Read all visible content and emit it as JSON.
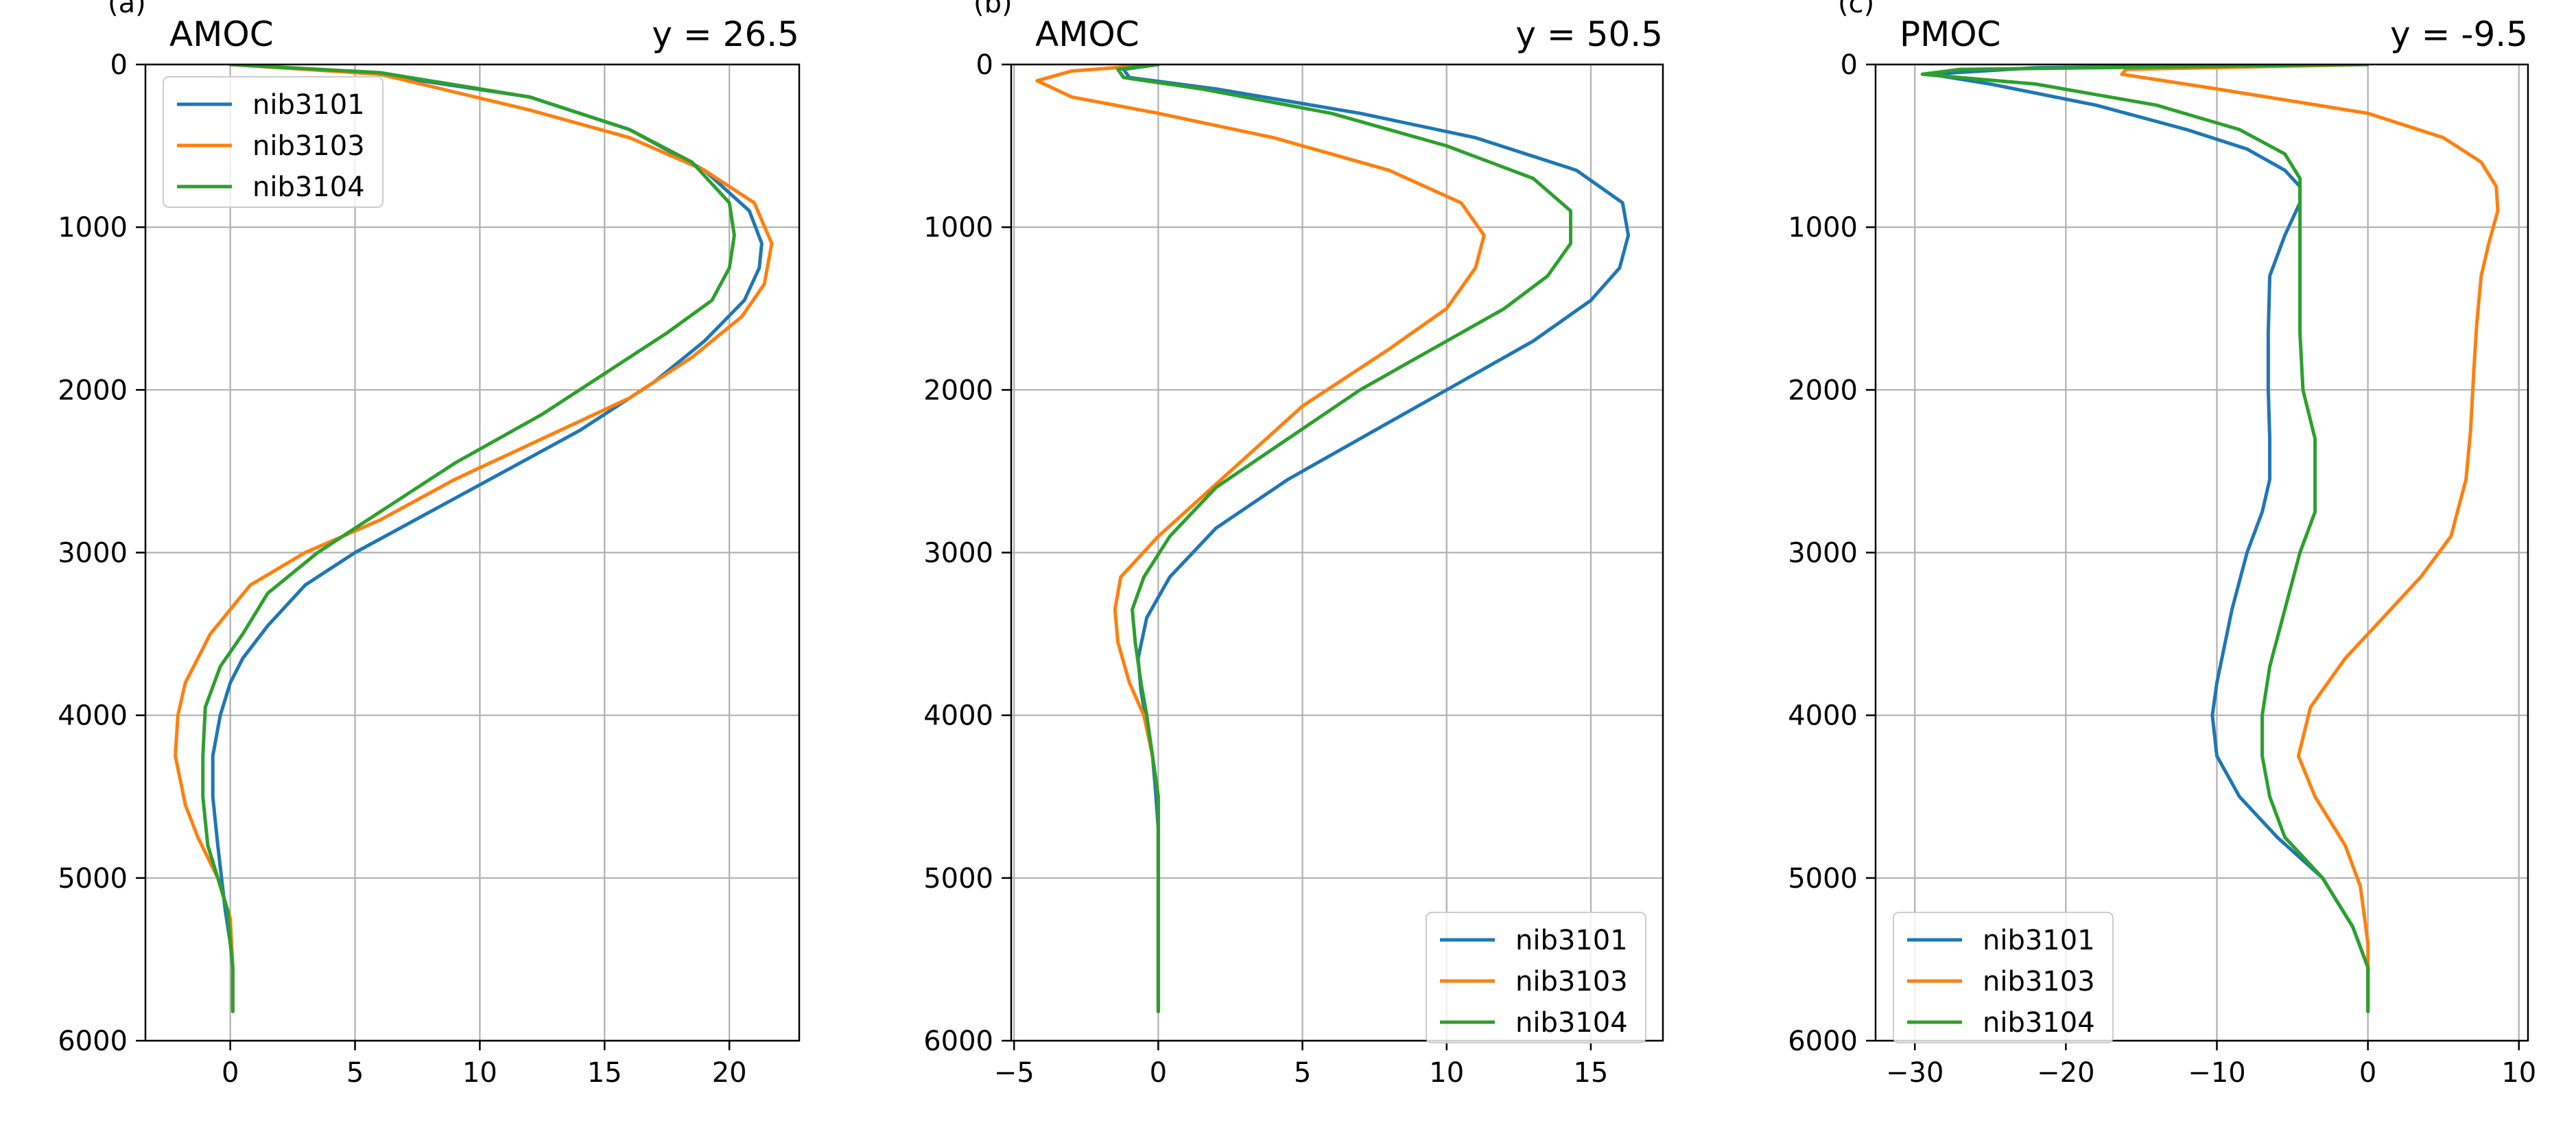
{
  "colors": {
    "nib3101": "#1f77b4",
    "nib3103": "#ff7f0e",
    "nib3104": "#2ca02c",
    "grid": "#b0b0b0",
    "axis": "#000000"
  },
  "chart_data": [
    {
      "type": "line",
      "panel_label": "(a)",
      "title_left": "AMOC",
      "title_right": "y = 26.5",
      "xlim": [
        -3.4,
        22.8
      ],
      "ylim": [
        6000,
        0
      ],
      "y_inverted": true,
      "xticks": [
        0,
        5,
        10,
        15,
        20
      ],
      "xtick_labels": [
        "0",
        "5",
        "10",
        "15",
        "20"
      ],
      "yticks": [
        0,
        1000,
        2000,
        3000,
        4000,
        5000,
        6000
      ],
      "ytick_labels": [
        "0",
        "1000",
        "2000",
        "3000",
        "4000",
        "5000",
        "6000"
      ],
      "grid": true,
      "legend": {
        "position": "top-left",
        "entries": [
          "nib3101",
          "nib3103",
          "nib3104"
        ]
      },
      "series": [
        {
          "name": "nib3101",
          "color": "#1f77b4",
          "x": [
            0,
            5.5,
            12,
            16,
            19,
            20.8,
            21.3,
            21.2,
            20.6,
            19,
            17,
            14,
            11,
            8,
            5,
            3,
            1.5,
            0.5,
            0,
            -0.4,
            -0.7,
            -0.7,
            -0.5,
            -0.2,
            0,
            0.1,
            0.1
          ],
          "y": [
            0,
            50,
            200,
            400,
            650,
            900,
            1100,
            1250,
            1450,
            1700,
            1950,
            2250,
            2500,
            2750,
            3000,
            3200,
            3450,
            3650,
            3800,
            4000,
            4250,
            4500,
            4800,
            5200,
            5400,
            5550,
            5820
          ]
        },
        {
          "name": "nib3103",
          "color": "#ff7f0e",
          "x": [
            0,
            6,
            12,
            16,
            19,
            21,
            21.7,
            21.4,
            20.5,
            18.5,
            16,
            12.5,
            9,
            6,
            3,
            0.8,
            -0.8,
            -1.8,
            -2.1,
            -2.2,
            -1.8,
            -1.3,
            -0.5,
            0,
            0.1,
            0.1
          ],
          "y": [
            0,
            60,
            280,
            450,
            650,
            850,
            1100,
            1350,
            1550,
            1800,
            2050,
            2300,
            2550,
            2800,
            3000,
            3200,
            3500,
            3800,
            4000,
            4250,
            4550,
            4750,
            5000,
            5250,
            5550,
            5820
          ]
        },
        {
          "name": "nib3104",
          "color": "#2ca02c",
          "x": [
            0,
            6,
            12,
            16,
            18.5,
            20,
            20.2,
            20,
            19.3,
            17.5,
            15,
            12.5,
            9,
            6,
            3.5,
            1.5,
            0.5,
            -0.4,
            -1,
            -1.1,
            -1.1,
            -0.9,
            -0.5,
            -0.1,
            0,
            0.1,
            0.1
          ],
          "y": [
            0,
            50,
            200,
            400,
            600,
            850,
            1050,
            1250,
            1450,
            1650,
            1900,
            2150,
            2450,
            2750,
            3000,
            3250,
            3500,
            3700,
            3950,
            4250,
            4500,
            4800,
            5000,
            5200,
            5400,
            5550,
            5820
          ]
        }
      ]
    },
    {
      "type": "line",
      "panel_label": "(b)",
      "title_left": "AMOC",
      "title_right": "y = 50.5",
      "xlim": [
        -5.1,
        17.5
      ],
      "ylim": [
        6000,
        0
      ],
      "y_inverted": true,
      "xticks": [
        -5,
        0,
        5,
        10,
        15
      ],
      "xtick_labels": [
        "−5",
        "0",
        "5",
        "10",
        "15"
      ],
      "yticks": [
        0,
        1000,
        2000,
        3000,
        4000,
        5000,
        6000
      ],
      "ytick_labels": [
        "0",
        "1000",
        "2000",
        "3000",
        "4000",
        "5000",
        "6000"
      ],
      "grid": true,
      "legend": {
        "position": "bottom-right",
        "entries": [
          "nib3101",
          "nib3103",
          "nib3104"
        ]
      },
      "series": [
        {
          "name": "nib3101",
          "color": "#1f77b4",
          "x": [
            0,
            -1.2,
            -1,
            2,
            7,
            11,
            14.5,
            16.1,
            16.3,
            16,
            15,
            13,
            10.5,
            7.5,
            4.5,
            2,
            0.4,
            -0.4,
            -0.7,
            -0.6,
            -0.4,
            -0.2,
            -0.1,
            0,
            0,
            0,
            0
          ],
          "y": [
            0,
            30,
            80,
            150,
            300,
            450,
            650,
            850,
            1050,
            1250,
            1450,
            1700,
            1950,
            2250,
            2550,
            2850,
            3150,
            3400,
            3650,
            3850,
            4050,
            4250,
            4450,
            4700,
            5000,
            5400,
            5820
          ]
        },
        {
          "name": "nib3103",
          "color": "#ff7f0e",
          "x": [
            0,
            -3,
            -4.2,
            -3,
            0,
            4,
            8,
            10.5,
            11.3,
            11,
            10,
            8,
            5,
            2.5,
            0,
            -1.3,
            -1.5,
            -1.4,
            -1,
            -0.5,
            -0.2,
            0,
            0,
            0,
            0
          ],
          "y": [
            0,
            40,
            100,
            200,
            300,
            450,
            650,
            850,
            1050,
            1250,
            1500,
            1750,
            2100,
            2500,
            2900,
            3150,
            3350,
            3550,
            3800,
            4000,
            4250,
            4500,
            4800,
            5300,
            5820
          ]
        },
        {
          "name": "nib3104",
          "color": "#2ca02c",
          "x": [
            0,
            -1.4,
            -1.2,
            1.5,
            6,
            10,
            13,
            14.3,
            14.3,
            13.5,
            12,
            9.5,
            7,
            4.5,
            2,
            0.4,
            -0.5,
            -0.9,
            -0.8,
            -0.6,
            -0.4,
            -0.2,
            0,
            0,
            0,
            0
          ],
          "y": [
            0,
            30,
            80,
            150,
            300,
            500,
            700,
            900,
            1100,
            1300,
            1500,
            1750,
            2000,
            2300,
            2600,
            2900,
            3150,
            3350,
            3550,
            3800,
            4000,
            4250,
            4500,
            4800,
            5300,
            5820
          ]
        }
      ]
    },
    {
      "type": "line",
      "panel_label": "(c)",
      "title_left": "PMOC",
      "title_right": "y = -9.5",
      "xlim": [
        -32.6,
        10.6
      ],
      "ylim": [
        6000,
        0
      ],
      "y_inverted": true,
      "xticks": [
        -30,
        -20,
        -10,
        0,
        10
      ],
      "xtick_labels": [
        "−30",
        "−20",
        "−10",
        "0",
        "10"
      ],
      "yticks": [
        0,
        1000,
        2000,
        3000,
        4000,
        5000,
        6000
      ],
      "ytick_labels": [
        "0",
        "1000",
        "2000",
        "3000",
        "4000",
        "5000",
        "6000"
      ],
      "grid": true,
      "legend": {
        "position": "bottom-left",
        "entries": [
          "nib3101",
          "nib3103",
          "nib3104"
        ]
      },
      "series": [
        {
          "name": "nib3101",
          "color": "#1f77b4",
          "x": [
            0,
            -22,
            -29,
            -25,
            -18,
            -12,
            -8,
            -5.5,
            -4.5,
            -4.5,
            -5.5,
            -6.5,
            -6.6,
            -6.6,
            -6.5,
            -6.5,
            -7,
            -8,
            -9,
            -10,
            -10.3,
            -10,
            -8.5,
            -6,
            -3,
            -1,
            0,
            0
          ],
          "y": [
            0,
            20,
            60,
            120,
            250,
            400,
            520,
            650,
            750,
            850,
            1050,
            1300,
            1650,
            2000,
            2300,
            2550,
            2750,
            3000,
            3350,
            3800,
            4000,
            4250,
            4500,
            4750,
            5000,
            5300,
            5550,
            5820
          ]
        },
        {
          "name": "nib3103",
          "color": "#ff7f0e",
          "x": [
            0,
            -16,
            -16.3,
            -10,
            0,
            5,
            7.5,
            8.5,
            8.6,
            8,
            7.5,
            7.2,
            7,
            6.8,
            6.5,
            5.5,
            3.5,
            1,
            -1.5,
            -3.8,
            -4.6,
            -3.5,
            -1.5,
            -0.5,
            0,
            0
          ],
          "y": [
            0,
            30,
            60,
            150,
            300,
            450,
            600,
            750,
            900,
            1100,
            1300,
            1600,
            1900,
            2250,
            2550,
            2900,
            3150,
            3400,
            3650,
            3950,
            4250,
            4500,
            4800,
            5050,
            5400,
            5820
          ]
        },
        {
          "name": "nib3104",
          "color": "#2ca02c",
          "x": [
            0,
            -27,
            -29.5,
            -22,
            -14,
            -8.5,
            -5.5,
            -4.5,
            -4.5,
            -4.5,
            -4.5,
            -4.5,
            -4.3,
            -3.5,
            -3.5,
            -3.5,
            -4.5,
            -5.5,
            -6.5,
            -7,
            -7,
            -6.5,
            -5.5,
            -3,
            -1,
            0,
            0
          ],
          "y": [
            0,
            30,
            60,
            120,
            250,
            400,
            550,
            700,
            850,
            1050,
            1300,
            1650,
            2000,
            2300,
            2550,
            2750,
            3000,
            3350,
            3700,
            4000,
            4250,
            4500,
            4750,
            5000,
            5300,
            5550,
            5820
          ]
        }
      ]
    }
  ]
}
